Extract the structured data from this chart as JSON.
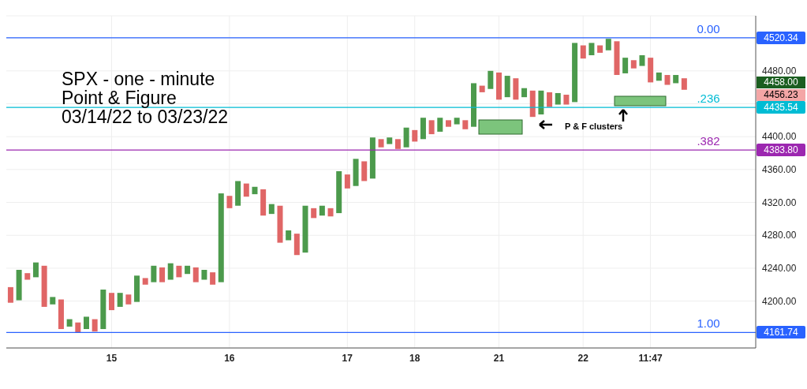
{
  "chart_data": {
    "type": "bar",
    "title": "SPX - one - minute\nPoint & Figure\n03/14/22 to 03/23/22",
    "categories": [
      null,
      null,
      null,
      null,
      null,
      null,
      null,
      null,
      null,
      null,
      null,
      null,
      "15",
      null,
      null,
      null,
      null,
      null,
      null,
      null,
      null,
      null,
      null,
      null,
      null,
      null,
      "16",
      null,
      null,
      null,
      null,
      null,
      null,
      null,
      null,
      null,
      null,
      null,
      null,
      null,
      "17",
      null,
      null,
      null,
      null,
      null,
      null,
      null,
      "18",
      null,
      null,
      null,
      null,
      null,
      null,
      null,
      null,
      null,
      "21",
      null,
      null,
      null,
      null,
      null,
      null,
      null,
      null,
      null,
      "22",
      null,
      null,
      null,
      null,
      null,
      null,
      null,
      "11:47",
      null,
      null,
      null,
      null,
      null,
      null,
      null,
      null,
      null,
      null,
      null,
      null
    ],
    "base": [
      4198,
      4201,
      4226,
      4229,
      4193,
      4196,
      4166,
      4169,
      4162,
      4166,
      4163,
      4166,
      4189,
      4193,
      4196,
      4199,
      4220,
      4223,
      4223,
      4226,
      4229,
      4233,
      4223,
      4226,
      4220,
      4223,
      4313,
      4316,
      4327,
      4330,
      4304,
      4306,
      4271,
      4274,
      4256,
      4259,
      4301,
      4304,
      4303,
      4307,
      4337,
      4340,
      4346,
      4349,
      4387,
      4391,
      4385,
      4387,
      4394,
      4397,
      4403,
      4406,
      4412,
      4415,
      4409,
      4412,
      4454,
      4458,
      4445,
      4448,
      4445,
      4448,
      4424,
      4427,
      4436,
      4439,
      4439,
      4442,
      4495,
      4499,
      4502,
      4505,
      4475,
      4477,
      4483,
      4486,
      4466,
      4468,
      4463,
      4465,
      4457,
      null,
      null,
      null,
      null,
      null,
      null,
      null,
      null
    ],
    "values": [
      19,
      37,
      8,
      18,
      50,
      9,
      36,
      9,
      12,
      15,
      15,
      48,
      21,
      17,
      12,
      32,
      8,
      20,
      18,
      20,
      14,
      10,
      18,
      12,
      15,
      108,
      15,
      30,
      16,
      9,
      32,
      12,
      45,
      12,
      26,
      57,
      12,
      12,
      10,
      51,
      17,
      33,
      24,
      50,
      10,
      8,
      12,
      24,
      14,
      26,
      17,
      17,
      8,
      8,
      11,
      53,
      8,
      22,
      33,
      26,
      26,
      11,
      32,
      29,
      18,
      14,
      12,
      72,
      16,
      15,
      9,
      14,
      41,
      19,
      10,
      13,
      30,
      10,
      12,
      10,
      14,
      null,
      null,
      null,
      null,
      null,
      null,
      null,
      null
    ],
    "colors": [
      "#e06666",
      "#4c9a4c",
      "#e06666",
      "#4c9a4c",
      "#e06666",
      "#4c9a4c",
      "#e06666",
      "#4c9a4c",
      "#e06666",
      "#4c9a4c",
      "#e06666",
      "#4c9a4c",
      "#e06666",
      "#4c9a4c",
      "#e06666",
      "#4c9a4c",
      "#e06666",
      "#4c9a4c",
      "#e06666",
      "#4c9a4c",
      "#e06666",
      "#4c9a4c",
      "#e06666",
      "#4c9a4c",
      "#e06666",
      "#4c9a4c",
      "#e06666",
      "#4c9a4c",
      "#e06666",
      "#4c9a4c",
      "#e06666",
      "#4c9a4c",
      "#e06666",
      "#4c9a4c",
      "#e06666",
      "#4c9a4c",
      "#e06666",
      "#4c9a4c",
      "#e06666",
      "#4c9a4c",
      "#e06666",
      "#4c9a4c",
      "#e06666",
      "#4c9a4c",
      "#e06666",
      "#4c9a4c",
      "#e06666",
      "#4c9a4c",
      "#e06666",
      "#4c9a4c",
      "#e06666",
      "#4c9a4c",
      "#e06666",
      "#4c9a4c",
      "#e06666",
      "#4c9a4c",
      "#e06666",
      "#4c9a4c",
      "#e06666",
      "#4c9a4c",
      "#e06666",
      "#4c9a4c",
      "#e06666",
      "#4c9a4c",
      "#e06666",
      "#4c9a4c",
      "#e06666",
      "#4c9a4c",
      "#e06666",
      "#4c9a4c",
      "#e06666",
      "#4c9a4c",
      "#e06666",
      "#4c9a4c",
      "#e06666",
      "#4c9a4c",
      "#e06666",
      "#4c9a4c",
      "#e06666",
      "#4c9a4c",
      "#e06666",
      null,
      null,
      null,
      null,
      null,
      null,
      null,
      null
    ],
    "ylim": [
      4143,
      4547
    ],
    "yticks": [
      {
        "value": 4200,
        "label": "4200.00"
      },
      {
        "value": 4240,
        "label": "4240.00"
      },
      {
        "value": 4280,
        "label": "4280.00"
      },
      {
        "value": 4320,
        "label": "4320.00"
      },
      {
        "value": 4360,
        "label": "4360.00"
      },
      {
        "value": 4400,
        "label": "4400.00"
      },
      {
        "value": 4440,
        "label": null
      },
      {
        "value": 4480,
        "label": "4480.00"
      },
      {
        "value": 4520,
        "label": null
      }
    ],
    "grid": true,
    "ref_lines": [
      {
        "axis": "y",
        "value": 4520.34,
        "label": "4520.34",
        "color": "#2962ff"
      },
      {
        "axis": "y",
        "value": 4435.54,
        "label": "4435.54",
        "color": "#00bcd4"
      },
      {
        "axis": "y",
        "value": 4383.8,
        "label": "4383.80",
        "color": "#9c27b0"
      },
      {
        "axis": "y",
        "value": 4161.74,
        "label": "4161.74",
        "color": "#2962ff"
      }
    ],
    "annotations": [
      "P & F clusters",
      "4458.00",
      "4456.23",
      {
        "text": "0.00",
        "y": 4520.34
      },
      {
        "text": ".236",
        "y": 4435.54
      },
      {
        "text": ".382",
        "y": 4383.8
      },
      {
        "text": "1.00",
        "y": 4161.74
      }
    ]
  }
}
